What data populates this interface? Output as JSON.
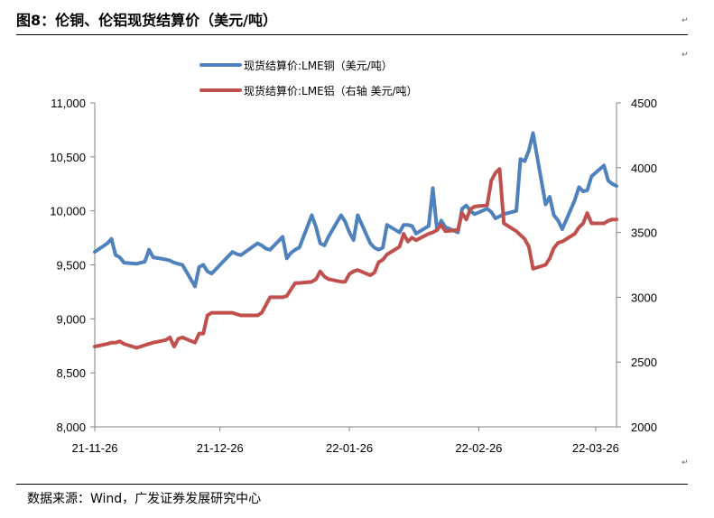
{
  "figure": {
    "title": "图8：伦铜、伦铝现货结算价（美元/吨）",
    "source": "数据来源：Wind，广发证券发展研究中心"
  },
  "chart_data": {
    "type": "line",
    "x_ticks": [
      "21-11-26",
      "21-12-26",
      "22-01-26",
      "22-02-26",
      "22-03-26"
    ],
    "y_left": {
      "ylim": [
        8000,
        11000
      ],
      "ticks": [
        "8,000",
        "8,500",
        "9,000",
        "9,500",
        "10,000",
        "10,500",
        "11,000"
      ]
    },
    "y_right": {
      "ylim": [
        2000,
        4500
      ],
      "ticks": [
        "2000",
        "2500",
        "3000",
        "3500",
        "4000",
        "4500"
      ]
    },
    "grid": false,
    "legend_position": "top-center",
    "series": [
      {
        "name": "现货结算价:LME铜（美元/吨）",
        "axis": "left",
        "color": "#4f81bd",
        "x": [
          "2021-11-26",
          "2021-11-29",
          "2021-11-30",
          "2021-12-01",
          "2021-12-02",
          "2021-12-03",
          "2021-12-06",
          "2021-12-07",
          "2021-12-08",
          "2021-12-09",
          "2021-12-10",
          "2021-12-13",
          "2021-12-14",
          "2021-12-15",
          "2021-12-16",
          "2021-12-17",
          "2021-12-20",
          "2021-12-21",
          "2021-12-22",
          "2021-12-23",
          "2021-12-24",
          "2021-12-29",
          "2021-12-30",
          "2021-12-31",
          "2022-01-04",
          "2022-01-05",
          "2022-01-06",
          "2022-01-07",
          "2022-01-10",
          "2022-01-11",
          "2022-01-12",
          "2022-01-13",
          "2022-01-14",
          "2022-01-17",
          "2022-01-18",
          "2022-01-19",
          "2022-01-20",
          "2022-01-21",
          "2022-01-24",
          "2022-01-25",
          "2022-01-26",
          "2022-01-27",
          "2022-01-28",
          "2022-01-31",
          "2022-02-01",
          "2022-02-02",
          "2022-02-03",
          "2022-02-04",
          "2022-02-07",
          "2022-02-08",
          "2022-02-09",
          "2022-02-10",
          "2022-02-11",
          "2022-02-14",
          "2022-02-15",
          "2022-02-16",
          "2022-02-17",
          "2022-02-18",
          "2022-02-21",
          "2022-02-22",
          "2022-02-23",
          "2022-02-24",
          "2022-02-25",
          "2022-02-28",
          "2022-03-01",
          "2022-03-02",
          "2022-03-03",
          "2022-03-04",
          "2022-03-07",
          "2022-03-08",
          "2022-03-09",
          "2022-03-10",
          "2022-03-11",
          "2022-03-14",
          "2022-03-15",
          "2022-03-16",
          "2022-03-17",
          "2022-03-18",
          "2022-03-21",
          "2022-03-22",
          "2022-03-23",
          "2022-03-24",
          "2022-03-25",
          "2022-03-28",
          "2022-03-29",
          "2022-03-30",
          "2022-03-31"
        ],
        "values": [
          9620,
          9700,
          9740,
          9590,
          9570,
          9520,
          9510,
          9520,
          9530,
          9640,
          9570,
          9550,
          9540,
          9520,
          9510,
          9500,
          9300,
          9480,
          9500,
          9440,
          9420,
          9620,
          9600,
          9590,
          9700,
          9680,
          9650,
          9640,
          9760,
          9560,
          9610,
          9640,
          9660,
          9960,
          9850,
          9700,
          9680,
          9760,
          9960,
          9900,
          9800,
          9730,
          9960,
          9700,
          9660,
          9640,
          9660,
          9870,
          9800,
          9870,
          9870,
          9860,
          9790,
          9860,
          10210,
          9820,
          9910,
          9850,
          9800,
          10020,
          10050,
          10000,
          9970,
          10020,
          9990,
          9930,
          9950,
          9970,
          10000,
          10480,
          10460,
          10560,
          10720,
          10060,
          10130,
          9960,
          9910,
          9830,
          10100,
          10220,
          10180,
          10190,
          10320,
          10420,
          10280,
          10250,
          10230
        ]
      },
      {
        "name": "现货结算价:LME铝（右轴 美元/吨）",
        "axis": "right",
        "color": "#c0504d",
        "x": [
          "2021-11-26",
          "2021-11-29",
          "2021-11-30",
          "2021-12-01",
          "2021-12-02",
          "2021-12-03",
          "2021-12-06",
          "2021-12-07",
          "2021-12-08",
          "2021-12-09",
          "2021-12-10",
          "2021-12-13",
          "2021-12-14",
          "2021-12-15",
          "2021-12-16",
          "2021-12-17",
          "2021-12-20",
          "2021-12-21",
          "2021-12-22",
          "2021-12-23",
          "2021-12-24",
          "2021-12-29",
          "2021-12-30",
          "2021-12-31",
          "2022-01-04",
          "2022-01-05",
          "2022-01-06",
          "2022-01-07",
          "2022-01-10",
          "2022-01-11",
          "2022-01-12",
          "2022-01-13",
          "2022-01-14",
          "2022-01-17",
          "2022-01-18",
          "2022-01-19",
          "2022-01-20",
          "2022-01-21",
          "2022-01-24",
          "2022-01-25",
          "2022-01-26",
          "2022-01-27",
          "2022-01-28",
          "2022-01-31",
          "2022-02-01",
          "2022-02-02",
          "2022-02-03",
          "2022-02-04",
          "2022-02-07",
          "2022-02-08",
          "2022-02-09",
          "2022-02-10",
          "2022-02-11",
          "2022-02-14",
          "2022-02-15",
          "2022-02-16",
          "2022-02-17",
          "2022-02-18",
          "2022-02-21",
          "2022-02-22",
          "2022-02-23",
          "2022-02-24",
          "2022-02-25",
          "2022-02-28",
          "2022-03-01",
          "2022-03-02",
          "2022-03-03",
          "2022-03-04",
          "2022-03-07",
          "2022-03-08",
          "2022-03-09",
          "2022-03-10",
          "2022-03-11",
          "2022-03-14",
          "2022-03-15",
          "2022-03-16",
          "2022-03-17",
          "2022-03-18",
          "2022-03-21",
          "2022-03-22",
          "2022-03-23",
          "2022-03-24",
          "2022-03-25",
          "2022-03-28",
          "2022-03-29",
          "2022-03-30",
          "2022-03-31"
        ],
        "values": [
          2620,
          2640,
          2650,
          2650,
          2660,
          2640,
          2610,
          2620,
          2630,
          2640,
          2650,
          2670,
          2690,
          2620,
          2680,
          2690,
          2650,
          2720,
          2720,
          2860,
          2880,
          2880,
          2870,
          2860,
          2860,
          2880,
          2940,
          3000,
          3000,
          3010,
          3060,
          3110,
          3110,
          3120,
          3140,
          3200,
          3160,
          3140,
          3120,
          3120,
          3180,
          3200,
          3210,
          3170,
          3190,
          3270,
          3290,
          3330,
          3390,
          3490,
          3430,
          3460,
          3440,
          3490,
          3500,
          3520,
          3560,
          3510,
          3520,
          3650,
          3600,
          3680,
          3700,
          3710,
          3900,
          3960,
          3990,
          3570,
          3510,
          3480,
          3450,
          3390,
          3220,
          3250,
          3300,
          3380,
          3420,
          3430,
          3490,
          3540,
          3570,
          3650,
          3570,
          3570,
          3590,
          3600,
          3600
        ]
      }
    ]
  }
}
